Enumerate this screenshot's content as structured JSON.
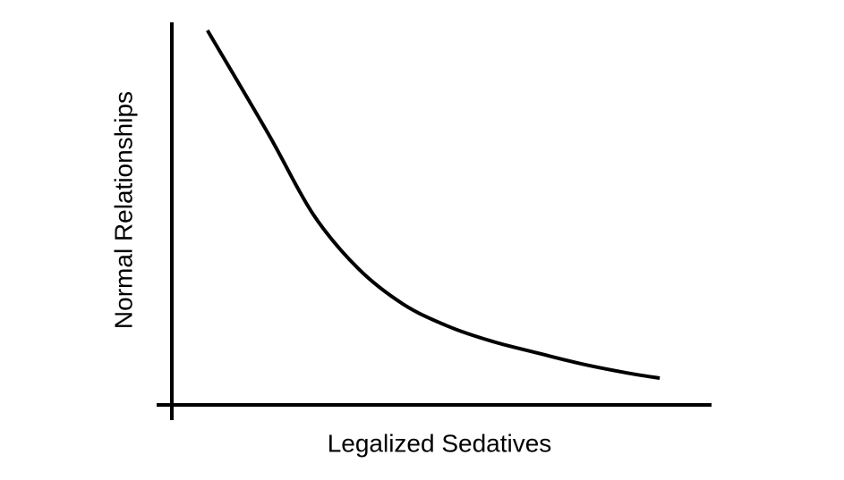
{
  "chart_data": {
    "type": "line",
    "x_label": "Legalized Sedatives",
    "y_label": "Normal Relationships",
    "x": [
      6.6,
      17.9,
      26.2,
      34.5,
      42.8,
      51.1,
      59.4,
      67.7,
      76.0,
      84.2,
      90.4
    ],
    "values": [
      97.9,
      70.8,
      49.8,
      35.7,
      26.4,
      20.6,
      16.6,
      13.6,
      10.7,
      8.4,
      7.0
    ],
    "color": "#000000",
    "xlim": [
      0,
      100
    ],
    "ylim": [
      0,
      100
    ]
  }
}
